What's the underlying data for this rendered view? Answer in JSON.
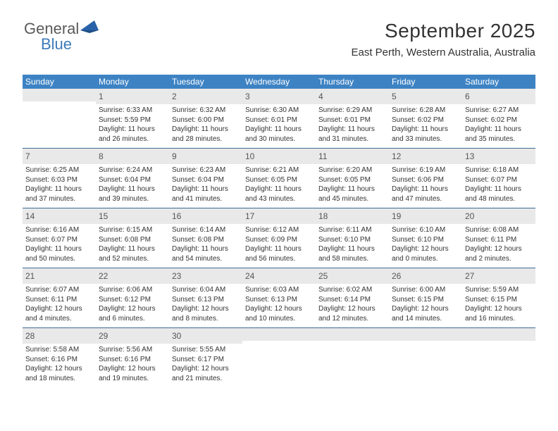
{
  "logo": {
    "word1": "General",
    "word2": "Blue",
    "word1_color": "#5a5a5a",
    "word2_color": "#3d7ab8",
    "triangle_color": "#2962a8"
  },
  "header": {
    "month_title": "September 2025",
    "location": "East Perth, Western Australia, Australia"
  },
  "style": {
    "header_bg": "#3d83c4",
    "header_fg": "#ffffff",
    "daynum_bg": "#e9e9e9",
    "week_border": "#3d6a99",
    "body_fontsize": 10,
    "daynum_fontsize": 12,
    "header_fontsize": 12,
    "title_fontsize": 28,
    "location_fontsize": 15
  },
  "day_labels": [
    "Sunday",
    "Monday",
    "Tuesday",
    "Wednesday",
    "Thursday",
    "Friday",
    "Saturday"
  ],
  "weeks": [
    [
      {
        "blank": true
      },
      {
        "n": "1",
        "sunrise": "Sunrise: 6:33 AM",
        "sunset": "Sunset: 5:59 PM",
        "daylight": "Daylight: 11 hours and 26 minutes."
      },
      {
        "n": "2",
        "sunrise": "Sunrise: 6:32 AM",
        "sunset": "Sunset: 6:00 PM",
        "daylight": "Daylight: 11 hours and 28 minutes."
      },
      {
        "n": "3",
        "sunrise": "Sunrise: 6:30 AM",
        "sunset": "Sunset: 6:01 PM",
        "daylight": "Daylight: 11 hours and 30 minutes."
      },
      {
        "n": "4",
        "sunrise": "Sunrise: 6:29 AM",
        "sunset": "Sunset: 6:01 PM",
        "daylight": "Daylight: 11 hours and 31 minutes."
      },
      {
        "n": "5",
        "sunrise": "Sunrise: 6:28 AM",
        "sunset": "Sunset: 6:02 PM",
        "daylight": "Daylight: 11 hours and 33 minutes."
      },
      {
        "n": "6",
        "sunrise": "Sunrise: 6:27 AM",
        "sunset": "Sunset: 6:02 PM",
        "daylight": "Daylight: 11 hours and 35 minutes."
      }
    ],
    [
      {
        "n": "7",
        "sunrise": "Sunrise: 6:25 AM",
        "sunset": "Sunset: 6:03 PM",
        "daylight": "Daylight: 11 hours and 37 minutes."
      },
      {
        "n": "8",
        "sunrise": "Sunrise: 6:24 AM",
        "sunset": "Sunset: 6:04 PM",
        "daylight": "Daylight: 11 hours and 39 minutes."
      },
      {
        "n": "9",
        "sunrise": "Sunrise: 6:23 AM",
        "sunset": "Sunset: 6:04 PM",
        "daylight": "Daylight: 11 hours and 41 minutes."
      },
      {
        "n": "10",
        "sunrise": "Sunrise: 6:21 AM",
        "sunset": "Sunset: 6:05 PM",
        "daylight": "Daylight: 11 hours and 43 minutes."
      },
      {
        "n": "11",
        "sunrise": "Sunrise: 6:20 AM",
        "sunset": "Sunset: 6:05 PM",
        "daylight": "Daylight: 11 hours and 45 minutes."
      },
      {
        "n": "12",
        "sunrise": "Sunrise: 6:19 AM",
        "sunset": "Sunset: 6:06 PM",
        "daylight": "Daylight: 11 hours and 47 minutes."
      },
      {
        "n": "13",
        "sunrise": "Sunrise: 6:18 AM",
        "sunset": "Sunset: 6:07 PM",
        "daylight": "Daylight: 11 hours and 48 minutes."
      }
    ],
    [
      {
        "n": "14",
        "sunrise": "Sunrise: 6:16 AM",
        "sunset": "Sunset: 6:07 PM",
        "daylight": "Daylight: 11 hours and 50 minutes."
      },
      {
        "n": "15",
        "sunrise": "Sunrise: 6:15 AM",
        "sunset": "Sunset: 6:08 PM",
        "daylight": "Daylight: 11 hours and 52 minutes."
      },
      {
        "n": "16",
        "sunrise": "Sunrise: 6:14 AM",
        "sunset": "Sunset: 6:08 PM",
        "daylight": "Daylight: 11 hours and 54 minutes."
      },
      {
        "n": "17",
        "sunrise": "Sunrise: 6:12 AM",
        "sunset": "Sunset: 6:09 PM",
        "daylight": "Daylight: 11 hours and 56 minutes."
      },
      {
        "n": "18",
        "sunrise": "Sunrise: 6:11 AM",
        "sunset": "Sunset: 6:10 PM",
        "daylight": "Daylight: 11 hours and 58 minutes."
      },
      {
        "n": "19",
        "sunrise": "Sunrise: 6:10 AM",
        "sunset": "Sunset: 6:10 PM",
        "daylight": "Daylight: 12 hours and 0 minutes."
      },
      {
        "n": "20",
        "sunrise": "Sunrise: 6:08 AM",
        "sunset": "Sunset: 6:11 PM",
        "daylight": "Daylight: 12 hours and 2 minutes."
      }
    ],
    [
      {
        "n": "21",
        "sunrise": "Sunrise: 6:07 AM",
        "sunset": "Sunset: 6:11 PM",
        "daylight": "Daylight: 12 hours and 4 minutes."
      },
      {
        "n": "22",
        "sunrise": "Sunrise: 6:06 AM",
        "sunset": "Sunset: 6:12 PM",
        "daylight": "Daylight: 12 hours and 6 minutes."
      },
      {
        "n": "23",
        "sunrise": "Sunrise: 6:04 AM",
        "sunset": "Sunset: 6:13 PM",
        "daylight": "Daylight: 12 hours and 8 minutes."
      },
      {
        "n": "24",
        "sunrise": "Sunrise: 6:03 AM",
        "sunset": "Sunset: 6:13 PM",
        "daylight": "Daylight: 12 hours and 10 minutes."
      },
      {
        "n": "25",
        "sunrise": "Sunrise: 6:02 AM",
        "sunset": "Sunset: 6:14 PM",
        "daylight": "Daylight: 12 hours and 12 minutes."
      },
      {
        "n": "26",
        "sunrise": "Sunrise: 6:00 AM",
        "sunset": "Sunset: 6:15 PM",
        "daylight": "Daylight: 12 hours and 14 minutes."
      },
      {
        "n": "27",
        "sunrise": "Sunrise: 5:59 AM",
        "sunset": "Sunset: 6:15 PM",
        "daylight": "Daylight: 12 hours and 16 minutes."
      }
    ],
    [
      {
        "n": "28",
        "sunrise": "Sunrise: 5:58 AM",
        "sunset": "Sunset: 6:16 PM",
        "daylight": "Daylight: 12 hours and 18 minutes."
      },
      {
        "n": "29",
        "sunrise": "Sunrise: 5:56 AM",
        "sunset": "Sunset: 6:16 PM",
        "daylight": "Daylight: 12 hours and 19 minutes."
      },
      {
        "n": "30",
        "sunrise": "Sunrise: 5:55 AM",
        "sunset": "Sunset: 6:17 PM",
        "daylight": "Daylight: 12 hours and 21 minutes."
      },
      {
        "blank": true
      },
      {
        "blank": true
      },
      {
        "blank": true
      },
      {
        "blank": true
      }
    ]
  ]
}
